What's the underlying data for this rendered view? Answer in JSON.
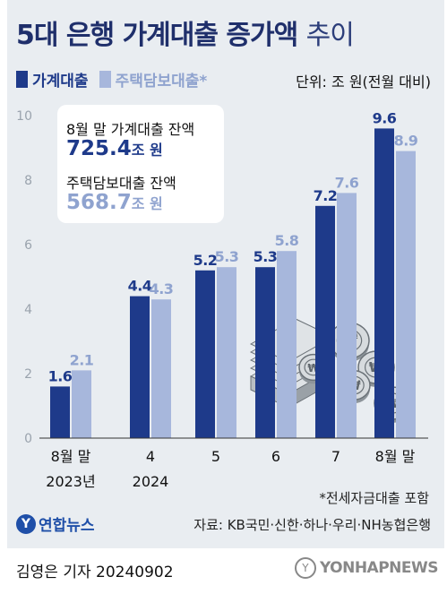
{
  "title_bold": "5대 은행 가계대출 증가액",
  "title_light": "추이",
  "unit": "단위: 조 원(전월 대비)",
  "infobox": {
    "label1": "8월 말 가계대출 잔액",
    "value1": "725.4",
    "unit1": "조 원",
    "label2": "주택담보대출 잔액",
    "value2": "568.7",
    "unit2": "조 원"
  },
  "footnote": "*전세자금대출 포함",
  "logo_char": "Y",
  "logo_text": "연합뉴스",
  "source": "자료: KB국민·신한·하나·우리·NH농협은행",
  "reporter": "김영은 기자  20240902",
  "watermark_char": "Y",
  "watermark_text": "YONHAPNEWS",
  "colors": {
    "dark": "#1e3a8a",
    "light": "#a7b7dc",
    "light_text": "#8fa3cf"
  },
  "illustration": "money-and-coins-icon",
  "chart_data": {
    "type": "bar",
    "categories": [
      "8월 말",
      "4",
      "5",
      "6",
      "7",
      "8월 말"
    ],
    "x_sublabels": [
      "2023년",
      "2024",
      "",
      "",
      "",
      ""
    ],
    "series": [
      {
        "name": "가계대출",
        "values": [
          1.6,
          4.4,
          5.2,
          5.3,
          7.2,
          9.6
        ],
        "labels": [
          "1.6",
          "4.4",
          "5.2",
          "5.3",
          "7.2",
          "9.6"
        ]
      },
      {
        "name": "주택담보대출*",
        "values": [
          2.1,
          4.3,
          5.3,
          5.8,
          7.6,
          8.9
        ],
        "labels": [
          "2.1",
          "4.3",
          "5.3",
          "5.8",
          "7.6",
          "8.9"
        ]
      }
    ],
    "ylim": [
      0,
      10
    ],
    "yticks": [
      0,
      2,
      4,
      6,
      8,
      10
    ],
    "grid": false
  }
}
